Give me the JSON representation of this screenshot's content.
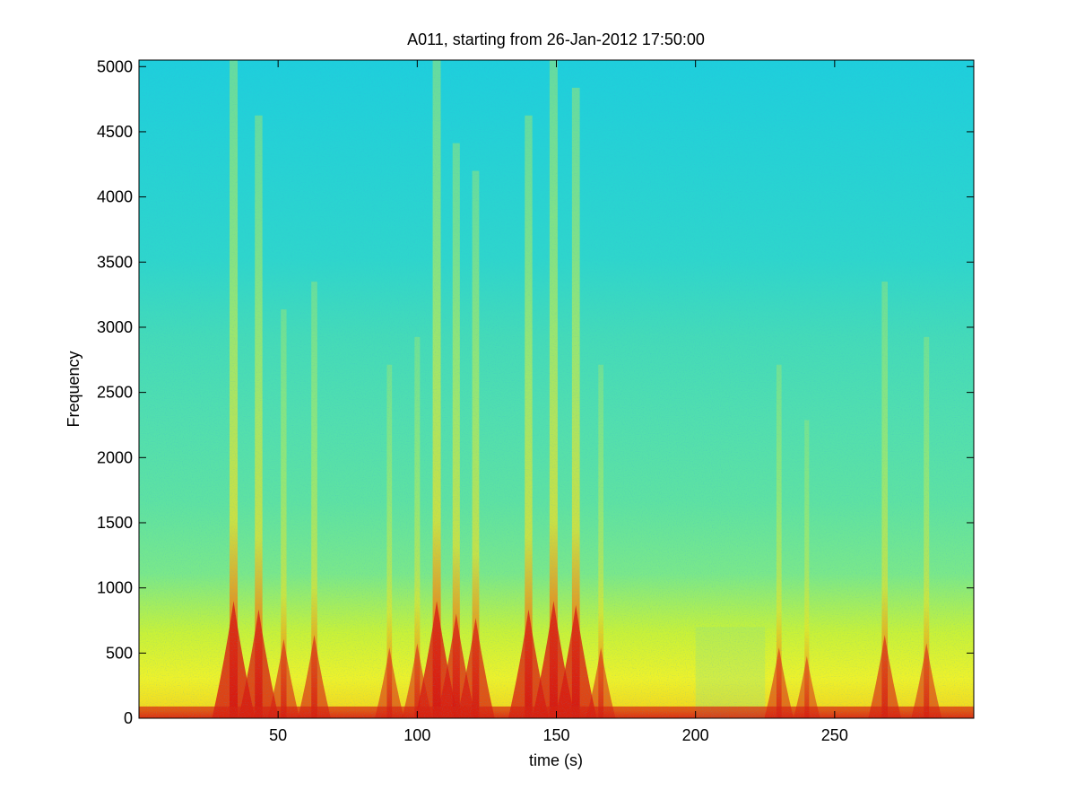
{
  "chart_data": {
    "type": "heatmap",
    "subtype": "spectrogram",
    "title": "A011, starting from 26-Jan-2012 17:50:00",
    "xlabel": "time (s)",
    "ylabel": "Frequency",
    "xlim": [
      0,
      300
    ],
    "ylim": [
      0,
      5050
    ],
    "x_ticks": [
      50,
      100,
      150,
      200,
      250
    ],
    "y_ticks": [
      0,
      500,
      1000,
      1500,
      2000,
      2500,
      3000,
      3500,
      4000,
      4500,
      5000
    ],
    "colormap": "jet",
    "grid": false,
    "colors": {
      "background_high_freq": "#1ed2d8",
      "mid_freq": "#4fe3a8",
      "low_freq": "#f0f028",
      "peak": "#d01010"
    },
    "broadband_events": [
      {
        "time": 34,
        "strength": 1.0
      },
      {
        "time": 43,
        "strength": 0.9
      },
      {
        "time": 52,
        "strength": 0.55
      },
      {
        "time": 63,
        "strength": 0.6
      },
      {
        "time": 90,
        "strength": 0.45
      },
      {
        "time": 100,
        "strength": 0.5
      },
      {
        "time": 107,
        "strength": 1.0
      },
      {
        "time": 114,
        "strength": 0.85
      },
      {
        "time": 121,
        "strength": 0.8
      },
      {
        "time": 140,
        "strength": 0.9
      },
      {
        "time": 149,
        "strength": 1.0
      },
      {
        "time": 157,
        "strength": 0.95
      },
      {
        "time": 166,
        "strength": 0.45
      },
      {
        "time": 230,
        "strength": 0.45
      },
      {
        "time": 240,
        "strength": 0.35
      },
      {
        "time": 268,
        "strength": 0.6
      },
      {
        "time": 283,
        "strength": 0.5
      }
    ],
    "quiet_interval": [
      200,
      225
    ]
  }
}
